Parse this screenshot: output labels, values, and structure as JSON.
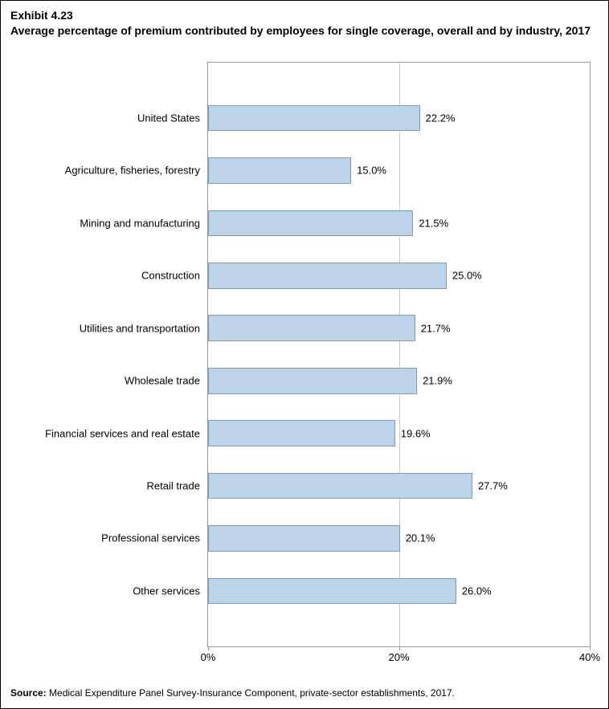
{
  "exhibit_number": "Exhibit 4.23",
  "title": "Average percentage of premium contributed by employees for single coverage, overall and by industry, 2017",
  "chart": {
    "type": "bar-horizontal",
    "x_domain": [
      0,
      40
    ],
    "x_ticks": [
      0,
      20,
      40
    ],
    "x_tick_labels": [
      "0%",
      "20%",
      "40%"
    ],
    "bar_color": "#bcd3e8",
    "bar_border_color": "#7a9cb8",
    "background_color": "#ffffff",
    "grid_color": "#cccccc",
    "axis_color": "#999999",
    "label_fontsize": 13,
    "categories": [
      {
        "label": "United States",
        "value": 22.2,
        "value_label": "22.2%"
      },
      {
        "label": "Agriculture, fisheries, forestry",
        "value": 15.0,
        "value_label": "15.0%"
      },
      {
        "label": "Mining and manufacturing",
        "value": 21.5,
        "value_label": "21.5%"
      },
      {
        "label": "Construction",
        "value": 25.0,
        "value_label": "25.0%"
      },
      {
        "label": "Utilities and transportation",
        "value": 21.7,
        "value_label": "21.7%"
      },
      {
        "label": "Wholesale trade",
        "value": 21.9,
        "value_label": "21.9%"
      },
      {
        "label": "Financial services and real estate",
        "value": 19.6,
        "value_label": "19.6%"
      },
      {
        "label": "Retail trade",
        "value": 27.7,
        "value_label": "27.7%"
      },
      {
        "label": "Professional services",
        "value": 20.1,
        "value_label": "20.1%"
      },
      {
        "label": "Other services",
        "value": 26.0,
        "value_label": "26.0%"
      }
    ]
  },
  "source_label": "Source:",
  "source_text": " Medical Expenditure Panel Survey-Insurance Component, private-sector establishments, 2017."
}
